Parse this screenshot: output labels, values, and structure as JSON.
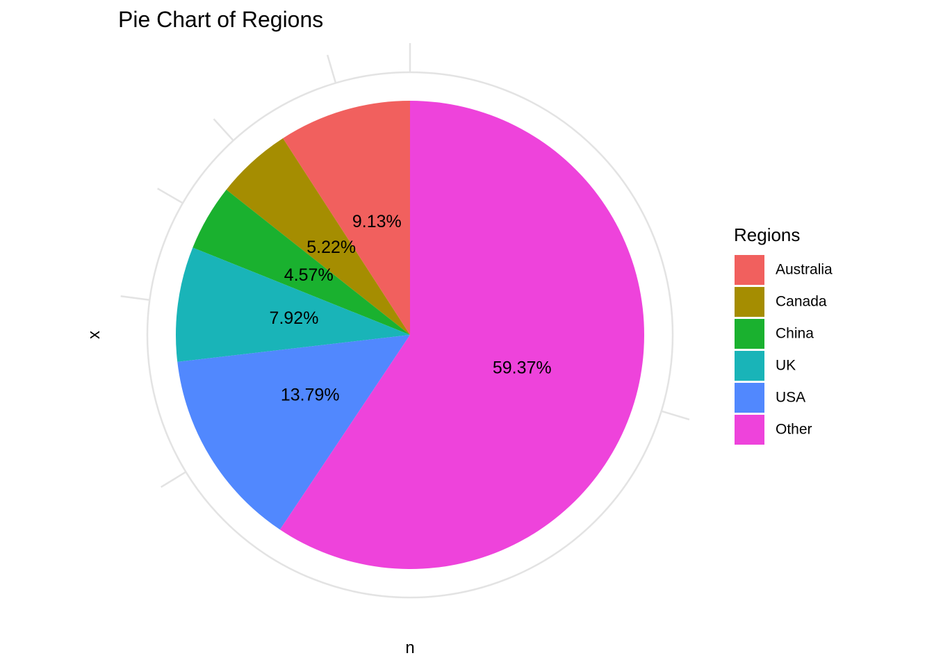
{
  "chart_data": {
    "type": "pie",
    "title": "Pie Chart of Regions",
    "xlabel": "n",
    "ylabel": "x",
    "legend": {
      "title": "Regions",
      "position": "right"
    },
    "grid": true,
    "direction": "counterclockwise",
    "start": "top",
    "slices": [
      {
        "category": "Australia",
        "value": 9.13,
        "label": "9.13%",
        "color": "#F1605E"
      },
      {
        "category": "Canada",
        "value": 5.22,
        "label": "5.22%",
        "color": "#A58D01"
      },
      {
        "category": "China",
        "value": 4.57,
        "label": "4.57%",
        "color": "#1AB12F"
      },
      {
        "category": "UK",
        "value": 7.92,
        "label": "7.92%",
        "color": "#19B4B8"
      },
      {
        "category": "USA",
        "value": 13.79,
        "label": "13.79%",
        "color": "#5188FE"
      },
      {
        "category": "Other",
        "value": 59.37,
        "label": "59.37%",
        "color": "#EE43DB"
      }
    ]
  }
}
